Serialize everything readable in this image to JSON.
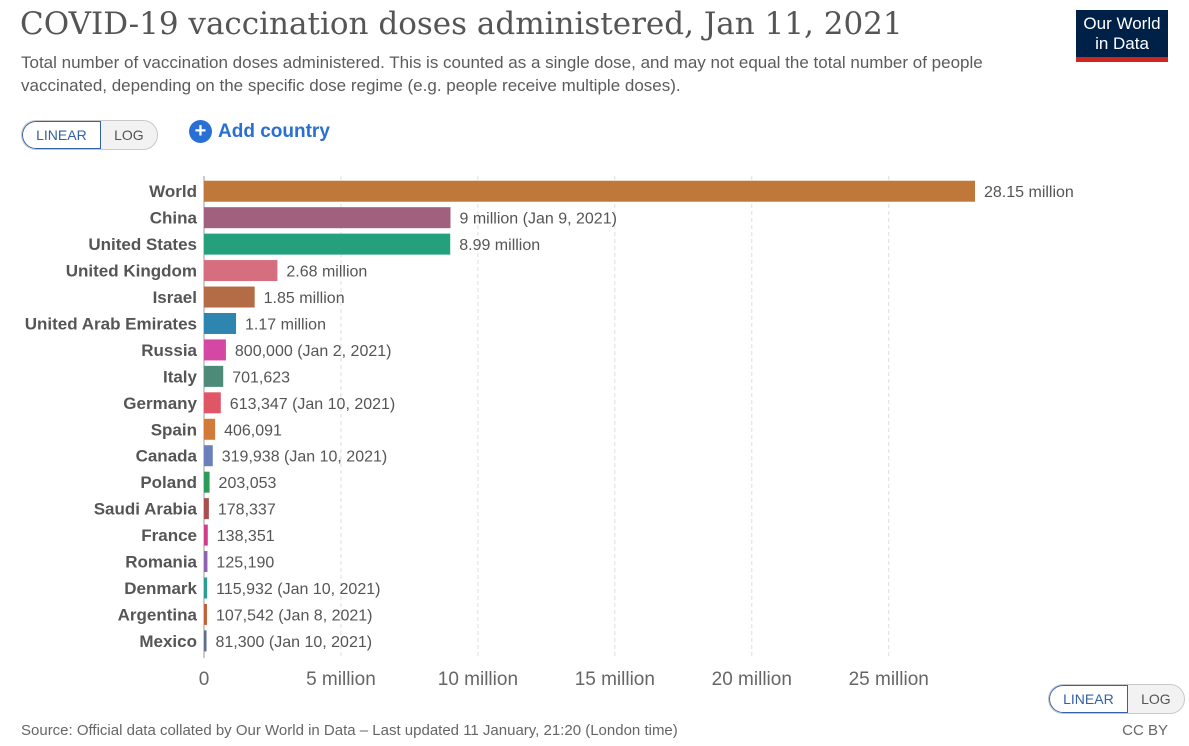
{
  "header": {
    "title": "COVID-19 vaccination doses administered, Jan 11, 2021",
    "subtitle": "Total number of vaccination doses administered. This is counted as a single dose, and may not equal the total number of people vaccinated, depending on the specific dose regime (e.g. people receive multiple doses).",
    "logo_line1": "Our World",
    "logo_line2": "in Data"
  },
  "controls": {
    "linear_label": "LINEAR",
    "log_label": "LOG",
    "add_country_label": "Add country",
    "add_country_icon": "plus-circle-icon",
    "active_scale": "linear"
  },
  "footer": {
    "source": "Source: Official data collated by Our World in Data – Last updated 11 January, 21:20 (London time)",
    "license": "CC BY"
  },
  "chart_data": {
    "type": "bar",
    "orientation": "horizontal",
    "title": "COVID-19 vaccination doses administered, Jan 11, 2021",
    "xlim": [
      0,
      28150000
    ],
    "x_ticks": [
      0,
      5000000,
      10000000,
      15000000,
      20000000,
      25000000
    ],
    "x_tick_labels": [
      "0",
      "5 million",
      "10 million",
      "15 million",
      "20 million",
      "25 million"
    ],
    "grid": "vertical dashed",
    "bars": [
      {
        "category": "World",
        "value": 28150000,
        "label": "28.15 million",
        "color": "#c0773a"
      },
      {
        "category": "China",
        "value": 9000000,
        "label": "9 million (Jan 9, 2021)",
        "color": "#a2607f"
      },
      {
        "category": "United States",
        "value": 8990000,
        "label": "8.99 million",
        "color": "#24a07c"
      },
      {
        "category": "United Kingdom",
        "value": 2680000,
        "label": "2.68 million",
        "color": "#d56e7e"
      },
      {
        "category": "Israel",
        "value": 1850000,
        "label": "1.85 million",
        "color": "#b36c46"
      },
      {
        "category": "United Arab Emirates",
        "value": 1170000,
        "label": "1.17 million",
        "color": "#2d85b0"
      },
      {
        "category": "Russia",
        "value": 800000,
        "label": "800,000 (Jan 2, 2021)",
        "color": "#d447a5"
      },
      {
        "category": "Italy",
        "value": 701623,
        "label": "701,623",
        "color": "#4e8a78"
      },
      {
        "category": "Germany",
        "value": 613347,
        "label": "613,347 (Jan 10, 2021)",
        "color": "#e05667"
      },
      {
        "category": "Spain",
        "value": 406091,
        "label": "406,091",
        "color": "#d27a39"
      },
      {
        "category": "Canada",
        "value": 319938,
        "label": "319,938 (Jan 10, 2021)",
        "color": "#6b80b8"
      },
      {
        "category": "Poland",
        "value": 203053,
        "label": "203,053",
        "color": "#2a9b58"
      },
      {
        "category": "Saudi Arabia",
        "value": 178337,
        "label": "178,337",
        "color": "#a85050"
      },
      {
        "category": "France",
        "value": 138351,
        "label": "138,351",
        "color": "#d33c8b"
      },
      {
        "category": "Romania",
        "value": 125190,
        "label": "125,190",
        "color": "#8b63b0"
      },
      {
        "category": "Denmark",
        "value": 115932,
        "label": "115,932 (Jan 10, 2021)",
        "color": "#2f9c92"
      },
      {
        "category": "Argentina",
        "value": 107542,
        "label": "107,542 (Jan 8, 2021)",
        "color": "#c0603a"
      },
      {
        "category": "Mexico",
        "value": 81300,
        "label": "81,300 (Jan 10, 2021)",
        "color": "#5d6e8e"
      }
    ]
  }
}
